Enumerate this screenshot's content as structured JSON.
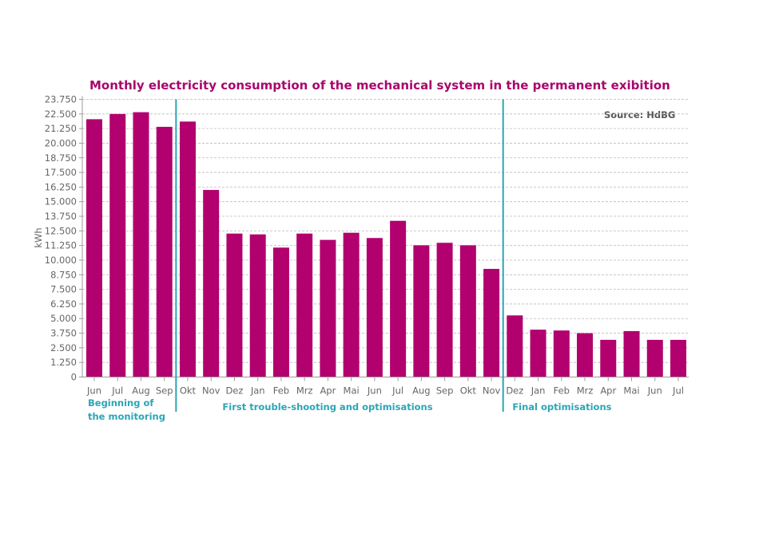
{
  "chart_data": {
    "type": "bar",
    "title": "Monthly electricity consumption of the mechanical system in the permanent exibition",
    "source": "Source: HdBG",
    "ylabel": "kWh",
    "xlabel": "",
    "ylim": [
      0,
      23750
    ],
    "yticks": [
      "0",
      "1.250",
      "2.500",
      "3.750",
      "5.000",
      "6.250",
      "7.500",
      "8.750",
      "10.000",
      "11.250",
      "12.500",
      "13.750",
      "15.000",
      "16.250",
      "17.500",
      "18.750",
      "20.000",
      "21.250",
      "22.500",
      "23.750"
    ],
    "grid": true,
    "categories": [
      "Jun",
      "Jul",
      "Aug",
      "Sep",
      "Okt",
      "Nov",
      "Dez",
      "Jan",
      "Feb",
      "Mrz",
      "Apr",
      "Mai",
      "Jun",
      "Jul",
      "Aug",
      "Sep",
      "Okt",
      "Nov",
      "Dez",
      "Jan",
      "Feb",
      "Mrz",
      "Apr",
      "Mai",
      "Jun",
      "Jul"
    ],
    "values": [
      22050,
      22500,
      22650,
      21400,
      21850,
      16000,
      12270,
      12200,
      11070,
      12270,
      11730,
      12340,
      11890,
      13360,
      11270,
      11480,
      11270,
      9250,
      5270,
      4050,
      3980,
      3750,
      3180,
      3930,
      3180,
      3180
    ],
    "bar_color": "#b2006e",
    "divider_color": "#2aa6b5",
    "phases": [
      {
        "label_lines": [
          "Beginning of",
          "the monitoring"
        ],
        "start_index": 0,
        "end_index": 3
      },
      {
        "label_lines": [
          "First trouble-shooting and optimisations"
        ],
        "start_index": 4,
        "end_index": 17
      },
      {
        "label_lines": [
          "Final optimisations"
        ],
        "start_index": 18,
        "end_index": 25
      }
    ]
  }
}
